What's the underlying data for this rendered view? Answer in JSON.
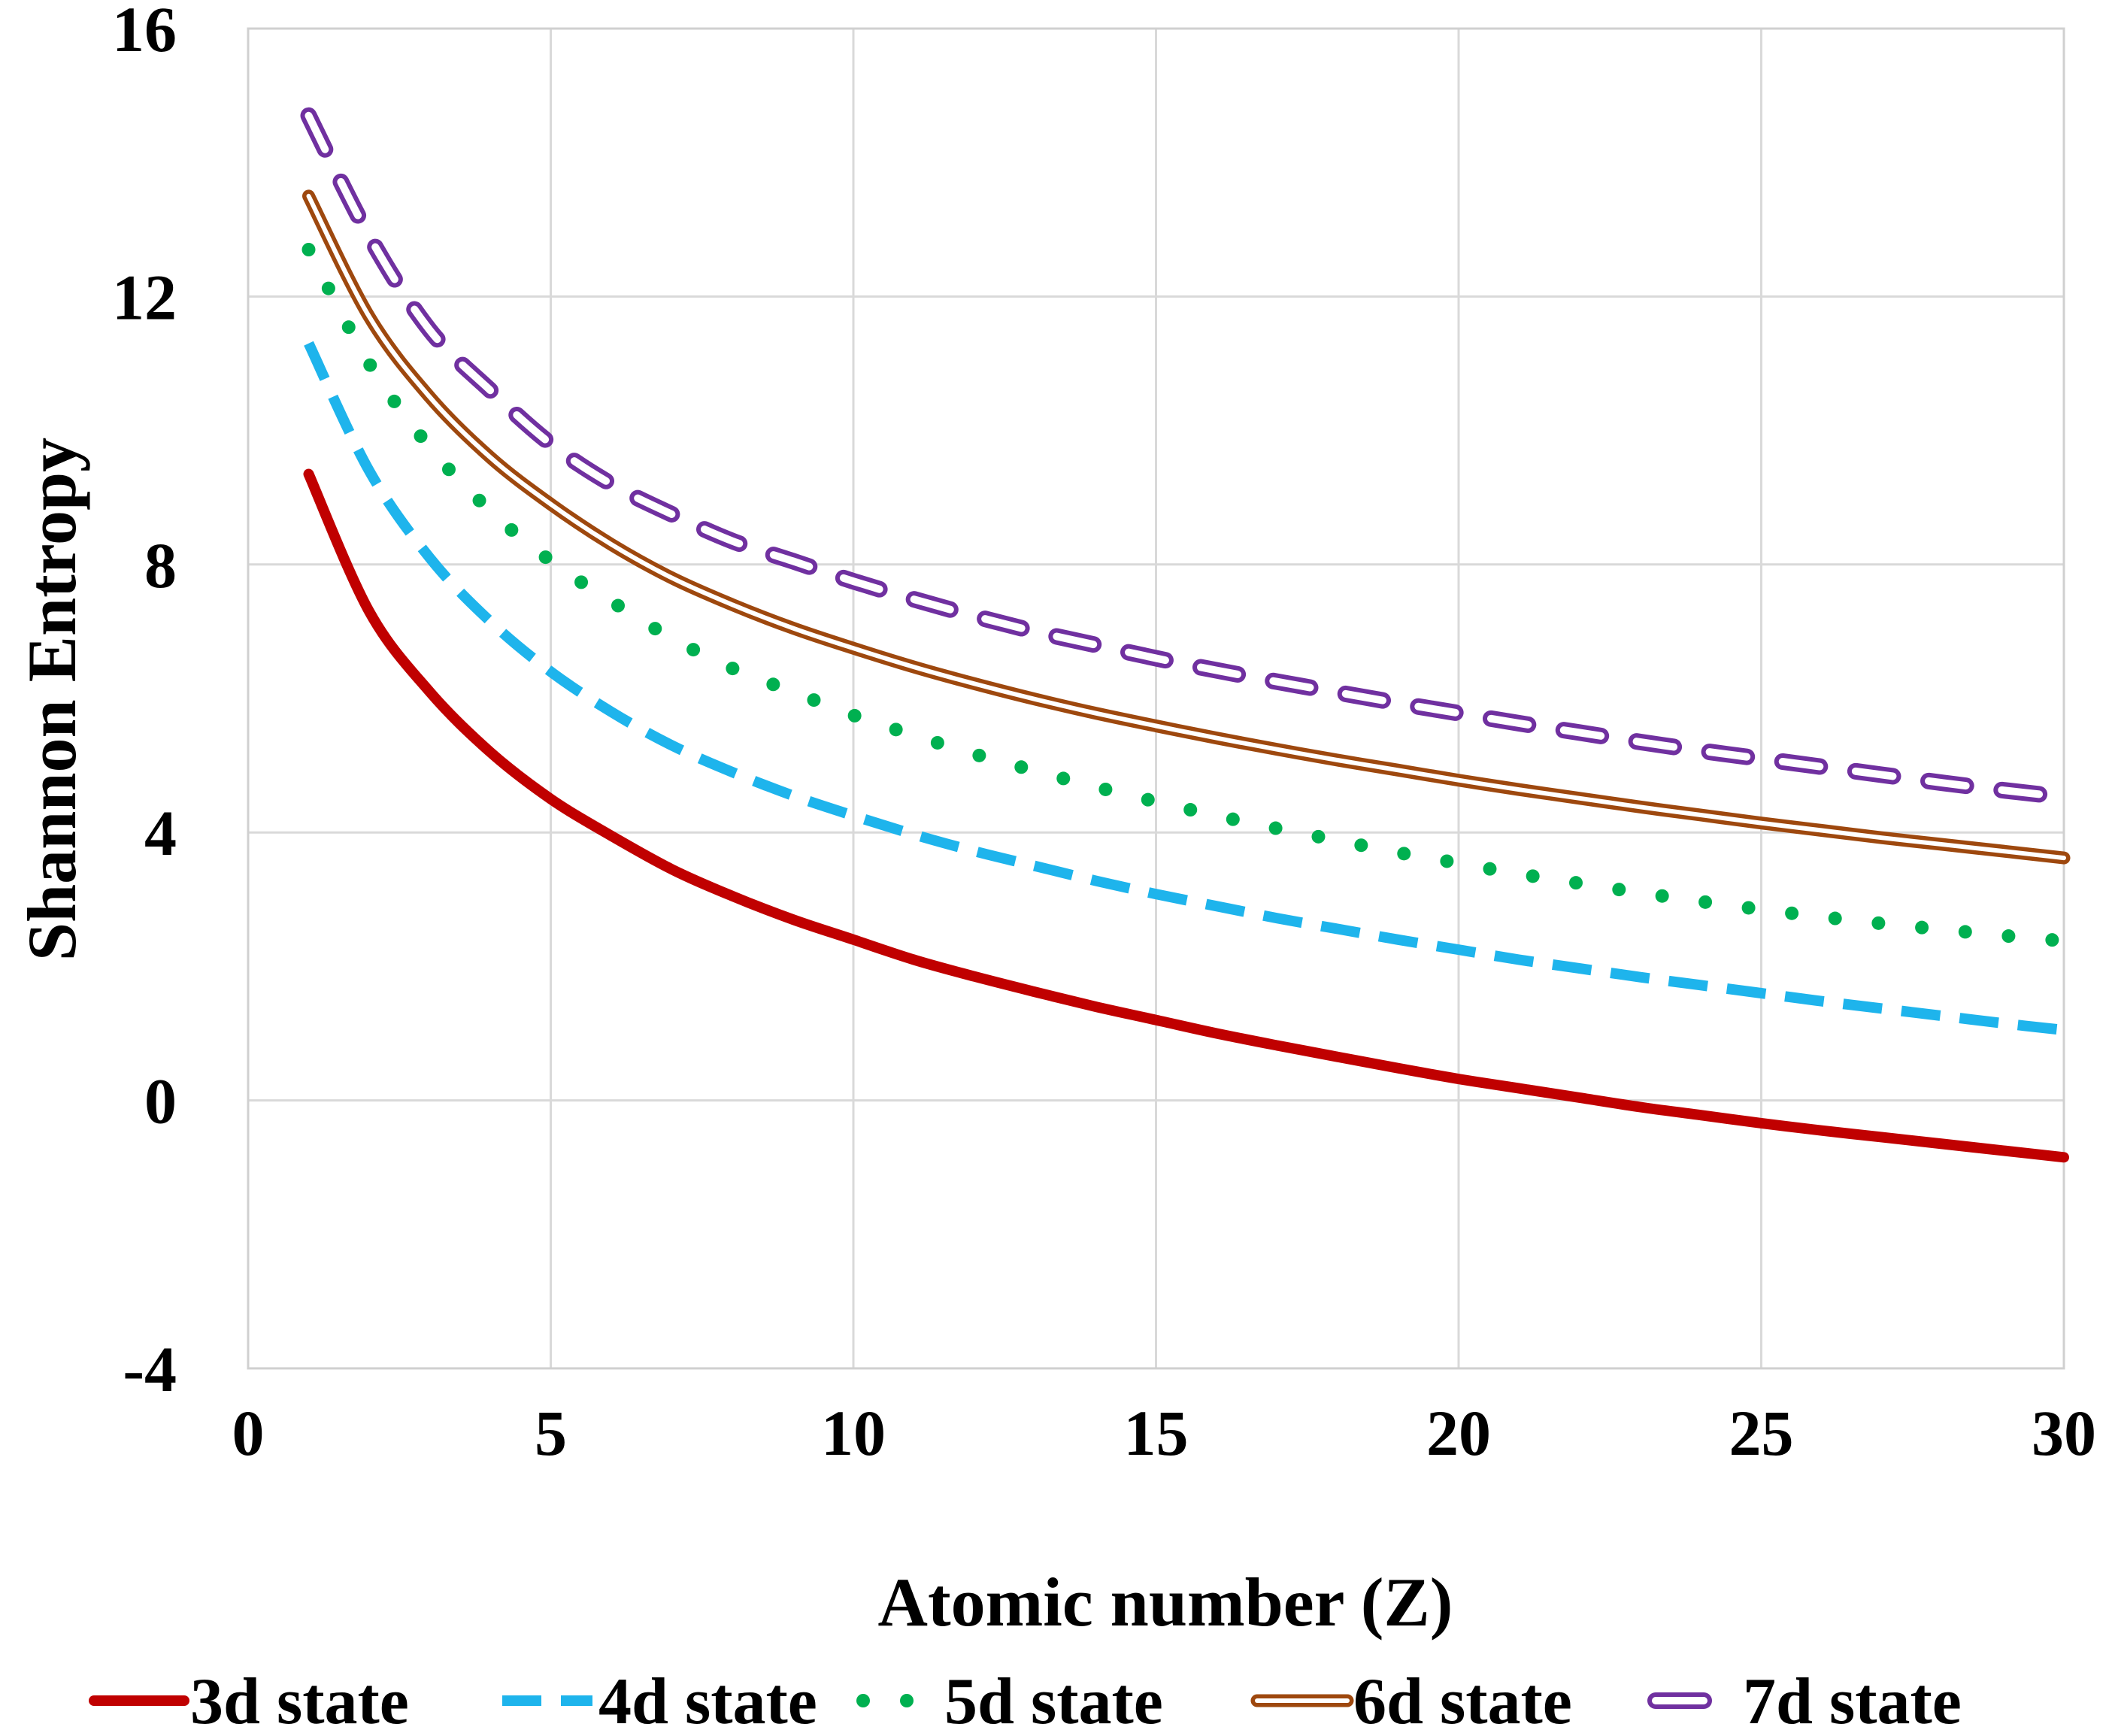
{
  "chart_data": {
    "type": "line",
    "title": "",
    "xlabel": "Atomic number (Z)",
    "ylabel": "Shannon Entropy",
    "xlim": [
      0,
      30
    ],
    "ylim": [
      -4,
      16
    ],
    "xticks": [
      0,
      5,
      10,
      15,
      20,
      25,
      30
    ],
    "yticks": [
      -4,
      0,
      4,
      8,
      12,
      16
    ],
    "xtick_labels": [
      "0",
      "5",
      "10",
      "15",
      "20",
      "25",
      "30"
    ],
    "ytick_labels": [
      "-4",
      "0",
      "4",
      "8",
      "12",
      "16"
    ],
    "grid": true,
    "legend_position": "bottom",
    "x": [
      1,
      2,
      3,
      4,
      5,
      6,
      7,
      8,
      9,
      10,
      11,
      12,
      13,
      14,
      15,
      16,
      17,
      18,
      19,
      20,
      21,
      22,
      23,
      24,
      25,
      26,
      27,
      28,
      29,
      30
    ],
    "series": [
      {
        "name": "3d state",
        "style": "solid",
        "color": "#C00000",
        "values": [
          9.35,
          7.3,
          6.1,
          5.2,
          4.5,
          3.95,
          3.45,
          3.05,
          2.7,
          2.4,
          2.1,
          1.85,
          1.62,
          1.4,
          1.2,
          1.0,
          0.82,
          0.65,
          0.48,
          0.32,
          0.18,
          0.04,
          -0.1,
          -0.22,
          -0.34,
          -0.45,
          -0.55,
          -0.65,
          -0.75,
          -0.85
        ]
      },
      {
        "name": "4d state",
        "style": "dashed",
        "color": "#1EB4EC",
        "values": [
          11.3,
          9.4,
          8.1,
          7.15,
          6.4,
          5.8,
          5.3,
          4.9,
          4.55,
          4.25,
          3.97,
          3.72,
          3.5,
          3.28,
          3.08,
          2.9,
          2.72,
          2.56,
          2.4,
          2.25,
          2.1,
          1.97,
          1.84,
          1.72,
          1.6,
          1.48,
          1.37,
          1.26,
          1.15,
          1.05
        ]
      },
      {
        "name": "5d state",
        "style": "dotted",
        "color": "#00B050",
        "values": [
          12.7,
          11.0,
          9.75,
          8.8,
          8.05,
          7.45,
          6.9,
          6.45,
          6.1,
          5.75,
          5.45,
          5.17,
          4.92,
          4.68,
          4.46,
          4.25,
          4.06,
          3.88,
          3.7,
          3.54,
          3.38,
          3.24,
          3.1,
          2.97,
          2.85,
          2.74,
          2.64,
          2.55,
          2.46,
          2.38
        ]
      },
      {
        "name": "6d state",
        "style": "double",
        "color": "#9E480E",
        "values": [
          13.5,
          11.7,
          10.5,
          9.6,
          8.9,
          8.3,
          7.8,
          7.4,
          7.05,
          6.75,
          6.47,
          6.22,
          5.99,
          5.78,
          5.59,
          5.41,
          5.24,
          5.08,
          4.93,
          4.78,
          4.64,
          4.51,
          4.38,
          4.26,
          4.14,
          4.03,
          3.92,
          3.82,
          3.72,
          3.62
        ]
      },
      {
        "name": "7d state",
        "style": "hollow-dash",
        "color": "#7030A0",
        "values": [
          14.7,
          12.9,
          11.5,
          10.6,
          9.8,
          9.2,
          8.75,
          8.35,
          8.05,
          7.75,
          7.48,
          7.23,
          7.0,
          6.8,
          6.6,
          6.42,
          6.25,
          6.09,
          5.93,
          5.78,
          5.63,
          5.49,
          5.35,
          5.22,
          5.1,
          4.98,
          4.86,
          4.74,
          4.63,
          4.53
        ]
      }
    ]
  }
}
